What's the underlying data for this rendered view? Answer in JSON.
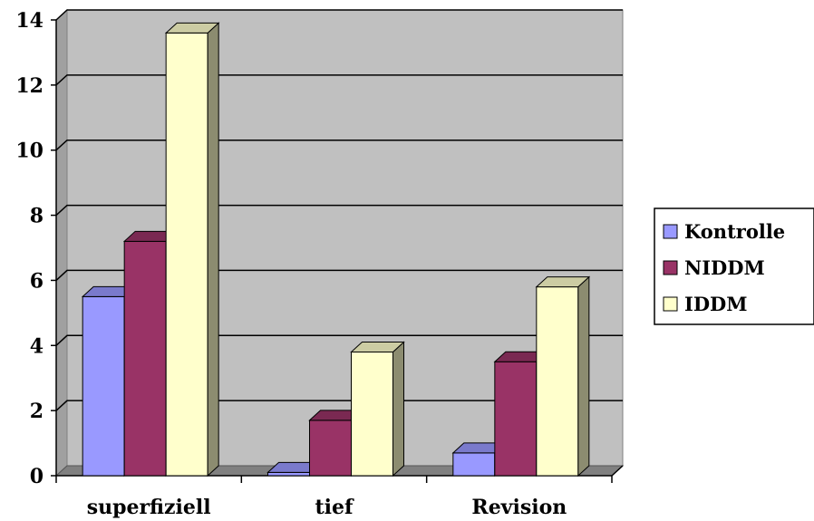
{
  "chart_data": {
    "type": "bar",
    "categories": [
      "superfiziell",
      "tief",
      "Revision"
    ],
    "series": [
      {
        "name": "Kontrolle",
        "values": [
          5.5,
          0.1,
          0.7
        ],
        "color": "#9999ff"
      },
      {
        "name": "NIDDM",
        "values": [
          7.2,
          1.7,
          3.5
        ],
        "color": "#993366"
      },
      {
        "name": "IDDM",
        "values": [
          13.6,
          3.8,
          5.8
        ],
        "color": "#ffffcc"
      }
    ],
    "yticks": [
      0,
      2,
      4,
      6,
      8,
      10,
      12,
      14
    ],
    "ylim": [
      0,
      14
    ],
    "grid": true,
    "legend": "right",
    "wall_color": "#c0c0c0",
    "floor_color": "#808080"
  }
}
